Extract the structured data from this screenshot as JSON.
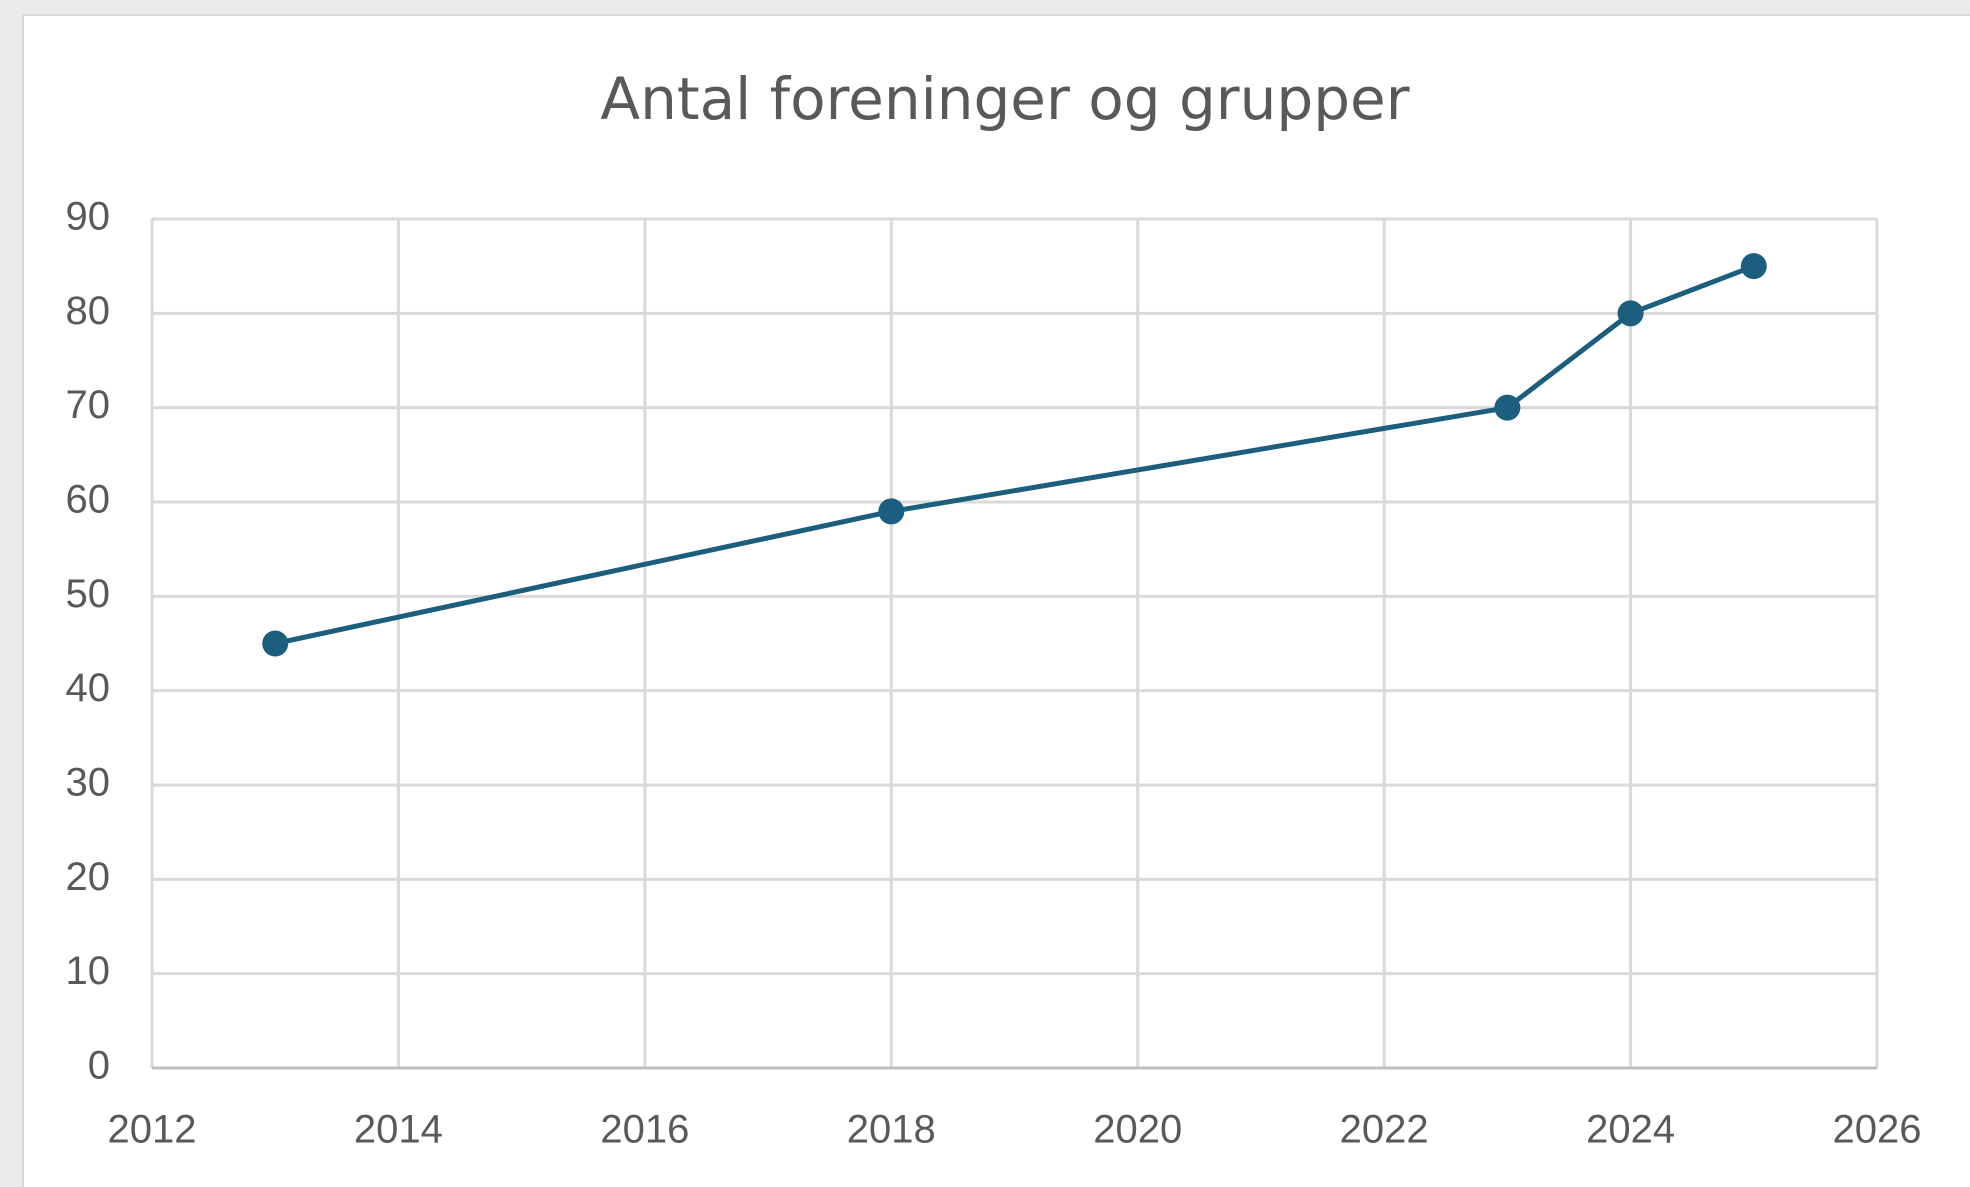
{
  "chart_data": {
    "type": "line",
    "title": "Antal foreninger og grupper",
    "x": [
      2013,
      2018,
      2023,
      2024,
      2025
    ],
    "values": [
      45,
      59,
      70,
      80,
      85
    ],
    "color": "#1b5e7d",
    "xlim": [
      2012,
      2026
    ],
    "xticks": [
      2012,
      2014,
      2016,
      2018,
      2020,
      2022,
      2024,
      2026
    ],
    "ylim": [
      0,
      90
    ],
    "yticks": [
      0,
      10,
      20,
      30,
      40,
      50,
      60,
      70,
      80,
      90
    ],
    "grid": true
  }
}
